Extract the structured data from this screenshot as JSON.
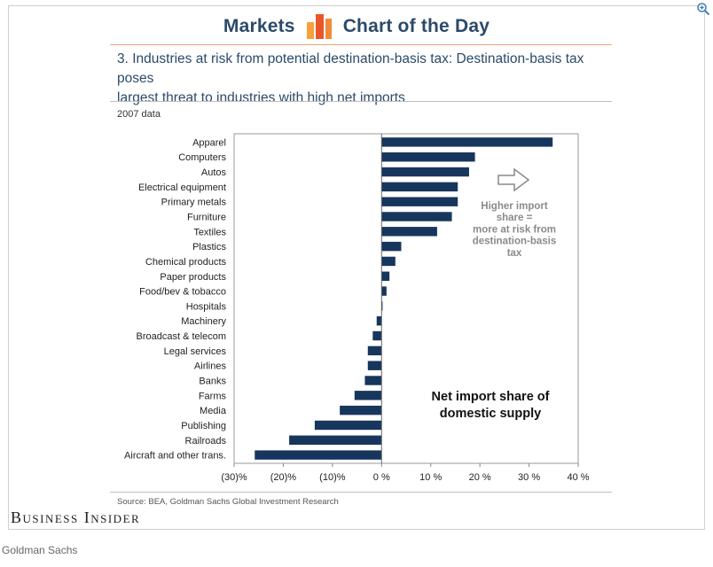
{
  "header": {
    "left_word": "Markets",
    "right_word": "Chart of the Day",
    "icon_name": "bar-chart-logo-icon",
    "accent": "#e8572a"
  },
  "subtitle_line1": "3. Industries at risk from potential destination-basis tax: Destination-basis tax poses",
  "subtitle_line2": "largest threat to industries with high net imports",
  "data_year": "2007 data",
  "chart_data": {
    "type": "bar",
    "orientation": "horizontal",
    "categories": [
      "Apparel",
      "Computers",
      "Autos",
      "Electrical equipment",
      "Primary metals",
      "Furniture",
      "Textiles",
      "Plastics",
      "Chemical products",
      "Paper products",
      "Food/bev & tobacco",
      "Hospitals",
      "Machinery",
      "Broadcast & telecom",
      "Legal services",
      "Airlines",
      "Banks",
      "Farms",
      "Media",
      "Publishing",
      "Railroads",
      "Aircraft and other trans."
    ],
    "values": [
      34.8,
      19.0,
      17.8,
      15.5,
      15.5,
      14.3,
      11.3,
      4.0,
      2.8,
      1.6,
      1.0,
      0.2,
      -1.0,
      -1.8,
      -2.8,
      -2.8,
      -3.4,
      -5.5,
      -8.5,
      -13.6,
      -18.8,
      -25.8
    ],
    "xlim": [
      -30,
      40
    ],
    "tick_values": [
      -30,
      -20,
      -10,
      0,
      10,
      20,
      30,
      40
    ],
    "tick_labels": [
      "(30)%",
      "(20)%",
      "(10)%",
      "0 %",
      "10 %",
      "20 %",
      "30 %",
      "40 %"
    ],
    "bar_color": "#17365d",
    "annotation_arrow": [
      "Higher import",
      "share =",
      "more at risk from",
      "destination-basis",
      "tax"
    ],
    "annotation_label": [
      "Net import share of",
      "domestic supply"
    ],
    "grid": false
  },
  "source": "Source: BEA, Goldman Sachs Global Investment Research",
  "publisher": "Business Insider",
  "credit": "Goldman Sachs"
}
